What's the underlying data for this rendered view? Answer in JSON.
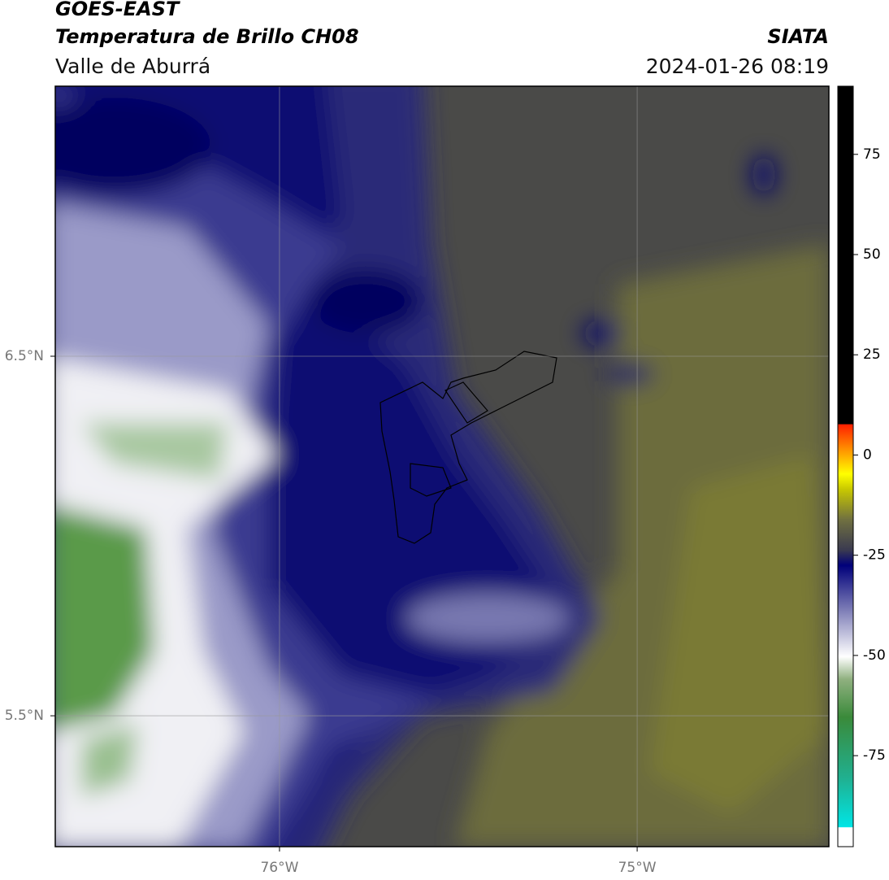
{
  "header": {
    "title": "GOES-EAST",
    "subtitle": "Temperatura de Brillo CH08",
    "region": "Valle de Aburrá",
    "agency": "SIATA",
    "datetime": "2024-01-26 08:19"
  },
  "map": {
    "xlim": [
      -76.627,
      -74.464
    ],
    "ylim": [
      5.136,
      7.251
    ],
    "xticks": [
      {
        "value": -76,
        "label": "76°W"
      },
      {
        "value": -75,
        "label": "75°W"
      }
    ],
    "yticks": [
      {
        "value": 6.5,
        "label": "6.5°N"
      },
      {
        "value": 5.5,
        "label": "5.5°N"
      }
    ]
  },
  "colorbar": {
    "lim": [
      -97.7,
      92
    ],
    "ticks": [
      75,
      50,
      25,
      0,
      -25,
      -50,
      -75
    ]
  }
}
